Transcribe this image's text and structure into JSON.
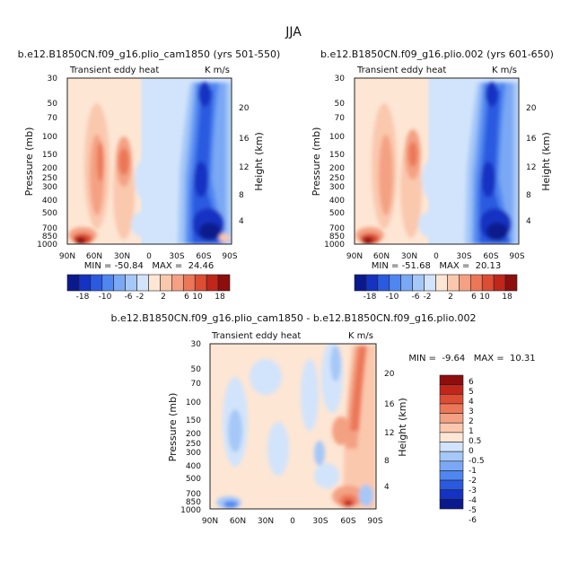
{
  "figure": {
    "title": "JJA"
  },
  "chart_data": [
    {
      "type": "heatmap",
      "title": "b.e12.B1850CN.f09_g16.plio_cam1850 (yrs 501-550)",
      "left_label": "Transient eddy heat",
      "right_label": "K m/s",
      "xlabel": "",
      "ylabel": "Pressure (mb)",
      "ylabel_right": "Height (km)",
      "x_ticks": [
        "90N",
        "60N",
        "30N",
        "0",
        "30S",
        "60S",
        "90S"
      ],
      "y_ticks": [
        "30",
        "50",
        "70",
        "100",
        "150",
        "200",
        "250",
        "300",
        "400",
        "500",
        "700",
        "850",
        "1000"
      ],
      "height_ticks": [
        "20",
        "16",
        "12",
        "8",
        "4"
      ],
      "stats": "MIN = -50.84   MAX =  24.46",
      "colorbar_labels": [
        "-18",
        "-10",
        "-6",
        "-2",
        "2",
        "6",
        "10",
        "18"
      ]
    },
    {
      "type": "heatmap",
      "title": "b.e12.B1850CN.f09_g16.plio.002 (yrs 601-650)",
      "left_label": "Transient eddy heat",
      "right_label": "K m/s",
      "xlabel": "",
      "ylabel": "Pressure (mb)",
      "ylabel_right": "Height (km)",
      "x_ticks": [
        "90N",
        "60N",
        "30N",
        "0",
        "30S",
        "60S",
        "90S"
      ],
      "y_ticks": [
        "30",
        "50",
        "70",
        "100",
        "150",
        "200",
        "250",
        "300",
        "400",
        "500",
        "700",
        "850",
        "1000"
      ],
      "height_ticks": [
        "20",
        "16",
        "12",
        "8",
        "4"
      ],
      "stats": "MIN = -51.68   MAX =  20.13",
      "colorbar_labels": [
        "-18",
        "-10",
        "-6",
        "-2",
        "2",
        "6",
        "10",
        "18"
      ]
    },
    {
      "type": "heatmap",
      "title": "b.e12.B1850CN.f09_g16.plio_cam1850 - b.e12.B1850CN.f09_g16.plio.002",
      "left_label": "Transient eddy heat",
      "right_label": "K m/s",
      "xlabel": "",
      "ylabel": "Pressure (mb)",
      "ylabel_right": "Height (km)",
      "x_ticks": [
        "90N",
        "60N",
        "30N",
        "0",
        "30S",
        "60S",
        "90S"
      ],
      "y_ticks": [
        "30",
        "50",
        "70",
        "100",
        "150",
        "200",
        "250",
        "300",
        "400",
        "500",
        "700",
        "850",
        "1000"
      ],
      "height_ticks": [
        "20",
        "16",
        "12",
        "8",
        "4"
      ],
      "stats": "MIN =  -9.64   MAX =  10.31",
      "colorbar_labels": [
        "6",
        "5",
        "4",
        "3",
        "2",
        "1",
        "0.5",
        "0",
        "-0.5",
        "-1",
        "-2",
        "-3",
        "-4",
        "-5",
        "-6"
      ]
    }
  ],
  "colors": {
    "top_scale": [
      "#0a1a8c",
      "#1433c2",
      "#2a5ae0",
      "#4f86f0",
      "#7aa8f4",
      "#a6c8f8",
      "#d2e4fb",
      "#fde6d4",
      "#fac8ad",
      "#f4a183",
      "#ec7758",
      "#dd4d33",
      "#c1261b",
      "#8e0d0d"
    ],
    "diff_scale": [
      "#8e0d0d",
      "#c1261b",
      "#dd4d33",
      "#ec7758",
      "#f4a183",
      "#fac8ad",
      "#fde6d4",
      "#d2e4fb",
      "#a6c8f8",
      "#7aa8f4",
      "#4f86f0",
      "#2a5ae0",
      "#1433c2",
      "#0a1a8c"
    ]
  }
}
